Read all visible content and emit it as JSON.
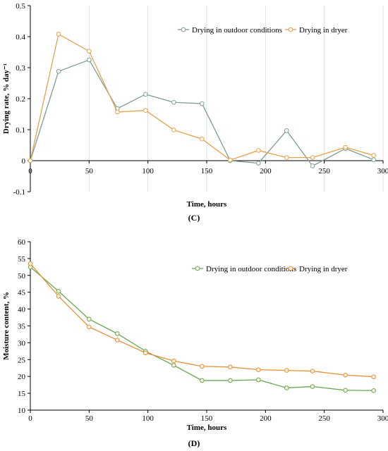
{
  "chart_data": [
    {
      "type": "line",
      "panel_label": "(C)",
      "xlabel": "Time, hours",
      "ylabel": "Drying rate, % day⁻¹",
      "xlim": [
        0,
        300
      ],
      "ylim": [
        -0.1,
        0.5
      ],
      "xticks": [
        "0",
        "50",
        "100",
        "150",
        "200",
        "250",
        "300"
      ],
      "xtick_values": [
        0,
        50,
        100,
        150,
        200,
        250,
        300
      ],
      "yticks": [
        "-0.1",
        "0",
        "0.1",
        "0.2",
        "0.3",
        "0.4",
        "0.5"
      ],
      "ytick_values": [
        -0.1,
        0,
        0.1,
        0.2,
        0.3,
        0.4,
        0.5
      ],
      "grid": "vertical",
      "legend": "top-right",
      "series": [
        {
          "name": "Drying in outdoor conditions",
          "color": "#7f9f8f",
          "x": [
            0,
            24,
            50,
            74,
            98,
            122,
            146,
            170,
            194,
            218,
            240,
            268,
            292
          ],
          "y": [
            0,
            0.288,
            0.325,
            0.168,
            0.214,
            0.188,
            0.184,
            0.0,
            -0.008,
            0.097,
            -0.017,
            0.039,
            0.003
          ]
        },
        {
          "name": "Drying in dryer",
          "color": "#e8a24a",
          "x": [
            0,
            24,
            50,
            74,
            98,
            122,
            146,
            170,
            194,
            218,
            240,
            268,
            292
          ],
          "y": [
            0,
            0.408,
            0.353,
            0.157,
            0.162,
            0.099,
            0.07,
            0.002,
            0.033,
            0.01,
            0.01,
            0.043,
            0.017
          ]
        }
      ]
    },
    {
      "type": "line",
      "panel_label": "(D)",
      "xlabel": "Time, hours",
      "ylabel": "Moisture content, %",
      "xlim": [
        0,
        300
      ],
      "ylim": [
        10,
        60
      ],
      "xticks": [
        "0",
        "50",
        "100",
        "150",
        "200",
        "250",
        "300"
      ],
      "xtick_values": [
        0,
        50,
        100,
        150,
        200,
        250,
        300
      ],
      "yticks": [
        "10",
        "15",
        "20",
        "25",
        "30",
        "35",
        "40",
        "45",
        "50",
        "55",
        "60"
      ],
      "ytick_values": [
        10,
        15,
        20,
        25,
        30,
        35,
        40,
        45,
        50,
        55,
        60
      ],
      "grid": "none",
      "legend": "top-right",
      "series": [
        {
          "name": "Drying in outdoor conditions",
          "color": "#6aa84f",
          "x": [
            0,
            24,
            50,
            74,
            98,
            122,
            146,
            170,
            194,
            218,
            240,
            268,
            292
          ],
          "y": [
            52.5,
            45.3,
            37.0,
            32.7,
            27.5,
            23.3,
            18.8,
            18.8,
            19.0,
            16.6,
            17.0,
            15.9,
            15.8
          ]
        },
        {
          "name": "Drying in dryer",
          "color": "#e69138",
          "x": [
            0,
            24,
            50,
            74,
            98,
            122,
            146,
            170,
            194,
            218,
            240,
            268,
            292
          ],
          "y": [
            53.5,
            43.8,
            34.7,
            30.8,
            27.0,
            24.6,
            23.0,
            22.8,
            22.0,
            21.8,
            21.6,
            20.4,
            19.9
          ]
        }
      ]
    }
  ]
}
